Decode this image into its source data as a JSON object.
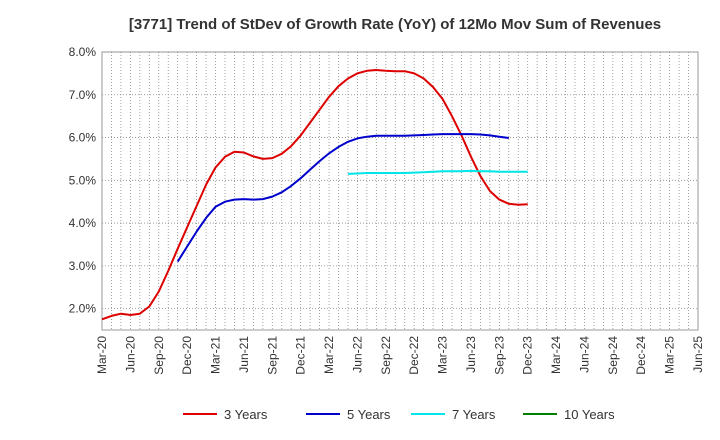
{
  "chart_data": {
    "type": "line",
    "title": "[3771]  Trend of StDev of Growth Rate (YoY) of 12Mo Mov Sum of Revenues",
    "xlabel": "",
    "ylabel": "",
    "x_ticks": [
      "Mar-20",
      "Jun-20",
      "Sep-20",
      "Dec-20",
      "Mar-21",
      "Jun-21",
      "Sep-21",
      "Dec-21",
      "Mar-22",
      "Jun-22",
      "Sep-22",
      "Dec-22",
      "Mar-23",
      "Jun-23",
      "Sep-23",
      "Dec-23",
      "Mar-24",
      "Jun-24",
      "Sep-24",
      "Dec-24",
      "Mar-25",
      "Jun-25"
    ],
    "y_ticks": [
      "8.0%",
      "7.0%",
      "6.0%",
      "5.0%",
      "4.0%",
      "3.0%",
      "2.0%"
    ],
    "ylim": [
      1.5,
      8.0
    ],
    "grid": true,
    "legend_position": "bottom",
    "series": [
      {
        "name": "3 Years",
        "color": "#dd0000",
        "start_index": 0,
        "values": [
          1.75,
          1.83,
          1.88,
          1.85,
          1.88,
          2.05,
          2.4,
          2.88,
          3.4,
          3.9,
          4.4,
          4.9,
          5.3,
          5.55,
          5.67,
          5.65,
          5.56,
          5.5,
          5.52,
          5.62,
          5.8,
          6.05,
          6.35,
          6.65,
          6.95,
          7.2,
          7.38,
          7.5,
          7.56,
          7.58,
          7.56,
          7.55,
          7.55,
          7.5,
          7.38,
          7.18,
          6.9,
          6.5,
          6.05,
          5.55,
          5.1,
          4.75,
          4.55,
          4.45,
          4.43,
          4.44
        ]
      },
      {
        "name": "5 Years",
        "color": "#0000cc",
        "start_index": 8,
        "values": [
          3.1,
          3.45,
          3.8,
          4.12,
          4.38,
          4.5,
          4.55,
          4.56,
          4.55,
          4.56,
          4.62,
          4.72,
          4.87,
          5.05,
          5.25,
          5.45,
          5.63,
          5.78,
          5.9,
          5.98,
          6.02,
          6.04,
          6.04,
          6.04,
          6.04,
          6.05,
          6.06,
          6.07,
          6.08,
          6.08,
          6.08,
          6.08,
          6.07,
          6.05,
          6.02,
          5.99
        ]
      },
      {
        "name": "7 Years",
        "color": "#00e5e5",
        "start_index": 26,
        "values": [
          5.15,
          5.16,
          5.17,
          5.17,
          5.17,
          5.17,
          5.17,
          5.18,
          5.19,
          5.2,
          5.21,
          5.21,
          5.21,
          5.22,
          5.21,
          5.21,
          5.2,
          5.2,
          5.2,
          5.2
        ]
      },
      {
        "name": "10 Years",
        "color": "#008000",
        "start_index": 0,
        "values": []
      }
    ]
  }
}
